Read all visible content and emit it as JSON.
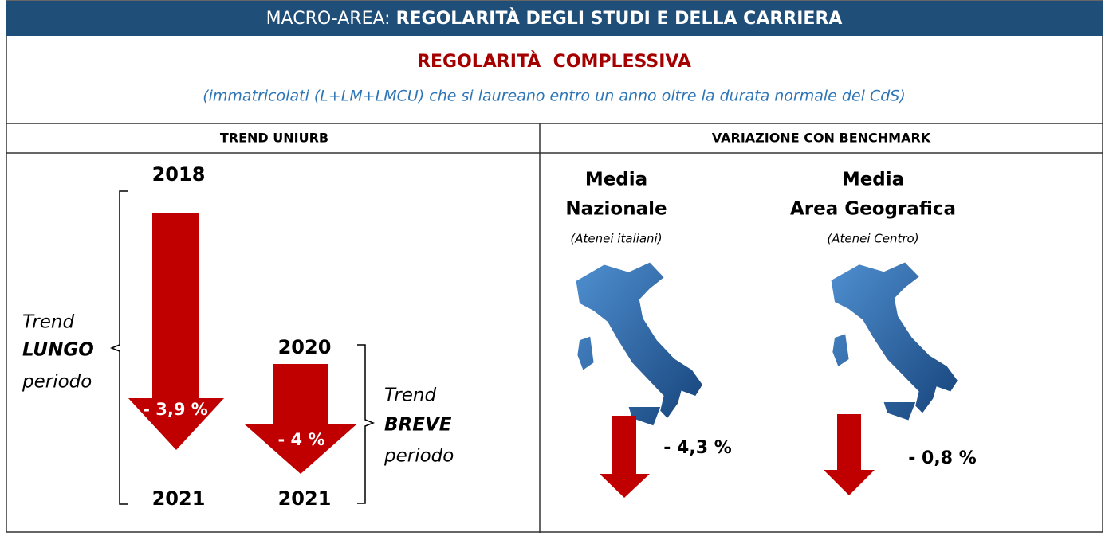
{
  "header": {
    "prefix": "MACRO-AREA:",
    "title": "REGOLARITÀ DEGLI STUDI E DELLA CARRIERA"
  },
  "section": {
    "title": "REGOLARITÀ  COMPLESSIVA",
    "subtitle": "(immatricolati (L+LM+LMCU) che si laureano entro un anno oltre la durata normale del CdS)"
  },
  "left": {
    "heading": "TREND UNIURB",
    "long": {
      "start": "2018",
      "end": "2021",
      "change": "- 3,9 %",
      "label": [
        "Trend",
        "LUNGO",
        "periodo"
      ]
    },
    "short": {
      "start": "2020",
      "end": "2021",
      "change": "- 4 %",
      "label": [
        "Trend",
        "BREVE",
        "periodo"
      ]
    }
  },
  "right": {
    "heading": "VARIAZIONE CON BENCHMARK",
    "benchmarks": [
      {
        "title": [
          "Media",
          "Nazionale"
        ],
        "note": "(Atenei italiani)",
        "change": "- 4,3 %"
      },
      {
        "title": [
          "Media",
          "Area Geografica"
        ],
        "note": "(Atenei Centro)",
        "change": "- 0,8 %"
      }
    ]
  }
}
